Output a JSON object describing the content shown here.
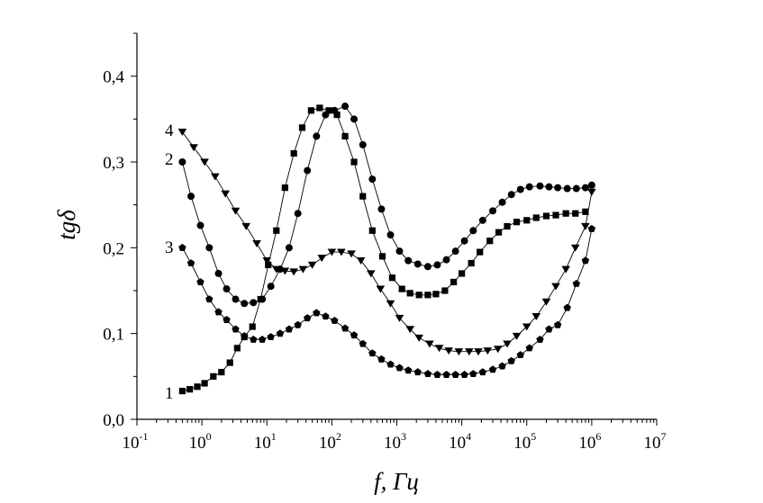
{
  "chart_data": {
    "type": "scatter",
    "x_scale": "log",
    "xlabel": "f, Гц",
    "ylabel": "tgδ",
    "xlim": [
      0.1,
      10000000
    ],
    "ylim": [
      0.0,
      0.45
    ],
    "y_ticks": [
      "0,0",
      "0,1",
      "0,2",
      "0,3",
      "0,4"
    ],
    "y_tick_values": [
      0.0,
      0.1,
      0.2,
      0.3,
      0.4
    ],
    "x_ticks": [
      {
        "base": "10",
        "exp": "-1",
        "value": 0.1
      },
      {
        "base": "10",
        "exp": "0",
        "value": 1
      },
      {
        "base": "10",
        "exp": "1",
        "value": 10
      },
      {
        "base": "10",
        "exp": "2",
        "value": 100
      },
      {
        "base": "10",
        "exp": "3",
        "value": 1000
      },
      {
        "base": "10",
        "exp": "4",
        "value": 10000
      },
      {
        "base": "10",
        "exp": "5",
        "value": 100000
      },
      {
        "base": "10",
        "exp": "6",
        "value": 1000000
      },
      {
        "base": "10",
        "exp": "7",
        "value": 10000000
      }
    ],
    "grid": false,
    "series": [
      {
        "name": "1",
        "marker": "square",
        "points": [
          [
            0.5,
            0.033
          ],
          [
            0.65,
            0.035
          ],
          [
            0.85,
            0.038
          ],
          [
            1.1,
            0.042
          ],
          [
            1.5,
            0.05
          ],
          [
            2.0,
            0.055
          ],
          [
            2.7,
            0.066
          ],
          [
            3.5,
            0.083
          ],
          [
            4.5,
            0.096
          ],
          [
            6.0,
            0.108
          ],
          [
            8.0,
            0.14
          ],
          [
            10.5,
            0.18
          ],
          [
            14.0,
            0.22
          ],
          [
            19.0,
            0.27
          ],
          [
            26.0,
            0.31
          ],
          [
            35.0,
            0.34
          ],
          [
            48.0,
            0.36
          ],
          [
            65.0,
            0.363
          ],
          [
            90.0,
            0.36
          ],
          [
            120.0,
            0.355
          ],
          [
            160.0,
            0.33
          ],
          [
            220.0,
            0.3
          ],
          [
            300.0,
            0.26
          ],
          [
            420.0,
            0.22
          ],
          [
            600.0,
            0.19
          ],
          [
            850.0,
            0.165
          ],
          [
            1200.0,
            0.152
          ],
          [
            1600.0,
            0.147
          ],
          [
            2200.0,
            0.145
          ],
          [
            3000.0,
            0.145
          ],
          [
            4000.0,
            0.146
          ],
          [
            5500.0,
            0.15
          ],
          [
            7500.0,
            0.16
          ],
          [
            10000.0,
            0.17
          ],
          [
            14000.0,
            0.182
          ],
          [
            19000.0,
            0.195
          ],
          [
            27000.0,
            0.208
          ],
          [
            37000.0,
            0.218
          ],
          [
            50000.0,
            0.225
          ],
          [
            70000.0,
            0.23
          ],
          [
            100000.0,
            0.232
          ],
          [
            140000.0,
            0.235
          ],
          [
            200000.0,
            0.237
          ],
          [
            280000.0,
            0.238
          ],
          [
            400000.0,
            0.24
          ],
          [
            560000.0,
            0.24
          ],
          [
            800000.0,
            0.242
          ]
        ]
      },
      {
        "name": "2",
        "marker": "circle",
        "points": [
          [
            0.5,
            0.3
          ],
          [
            0.68,
            0.26
          ],
          [
            0.95,
            0.226
          ],
          [
            1.3,
            0.2
          ],
          [
            1.8,
            0.17
          ],
          [
            2.4,
            0.152
          ],
          [
            3.3,
            0.14
          ],
          [
            4.5,
            0.135
          ],
          [
            6.2,
            0.136
          ],
          [
            8.5,
            0.14
          ],
          [
            11.5,
            0.155
          ],
          [
            16.0,
            0.175
          ],
          [
            22.0,
            0.2
          ],
          [
            30.0,
            0.24
          ],
          [
            42.0,
            0.29
          ],
          [
            58.0,
            0.33
          ],
          [
            80.0,
            0.355
          ],
          [
            110.0,
            0.36
          ],
          [
            160.0,
            0.365
          ],
          [
            220.0,
            0.35
          ],
          [
            300.0,
            0.32
          ],
          [
            420.0,
            0.28
          ],
          [
            580.0,
            0.245
          ],
          [
            800.0,
            0.215
          ],
          [
            1100.0,
            0.196
          ],
          [
            1500.0,
            0.185
          ],
          [
            2100.0,
            0.181
          ],
          [
            3000.0,
            0.178
          ],
          [
            4200.0,
            0.18
          ],
          [
            5800.0,
            0.186
          ],
          [
            8000.0,
            0.196
          ],
          [
            11000.0,
            0.208
          ],
          [
            15000.0,
            0.22
          ],
          [
            21000.0,
            0.232
          ],
          [
            30000.0,
            0.243
          ],
          [
            42000.0,
            0.253
          ],
          [
            58000.0,
            0.262
          ],
          [
            80000.0,
            0.268
          ],
          [
            110000.0,
            0.271
          ],
          [
            160000.0,
            0.272
          ],
          [
            220000.0,
            0.271
          ],
          [
            300000.0,
            0.27
          ],
          [
            420000.0,
            0.269
          ],
          [
            580000.0,
            0.269
          ],
          [
            800000.0,
            0.27
          ],
          [
            1000000.0,
            0.273
          ]
        ]
      },
      {
        "name": "3",
        "marker": "pentagon",
        "points": [
          [
            0.5,
            0.2
          ],
          [
            0.68,
            0.182
          ],
          [
            0.95,
            0.16
          ],
          [
            1.3,
            0.14
          ],
          [
            1.8,
            0.125
          ],
          [
            2.4,
            0.116
          ],
          [
            3.3,
            0.105
          ],
          [
            4.5,
            0.097
          ],
          [
            6.2,
            0.093
          ],
          [
            8.5,
            0.093
          ],
          [
            11.5,
            0.096
          ],
          [
            16.0,
            0.1
          ],
          [
            22.0,
            0.105
          ],
          [
            30.0,
            0.11
          ],
          [
            42.0,
            0.118
          ],
          [
            58.0,
            0.124
          ],
          [
            80.0,
            0.12
          ],
          [
            110.0,
            0.115
          ],
          [
            160.0,
            0.106
          ],
          [
            220.0,
            0.098
          ],
          [
            300.0,
            0.088
          ],
          [
            420.0,
            0.077
          ],
          [
            580.0,
            0.07
          ],
          [
            800.0,
            0.064
          ],
          [
            1100.0,
            0.06
          ],
          [
            1500.0,
            0.057
          ],
          [
            2100.0,
            0.055
          ],
          [
            3000.0,
            0.053
          ],
          [
            4200.0,
            0.052
          ],
          [
            5800.0,
            0.052
          ],
          [
            8000.0,
            0.052
          ],
          [
            11000.0,
            0.052
          ],
          [
            15000.0,
            0.053
          ],
          [
            21000.0,
            0.055
          ],
          [
            30000.0,
            0.058
          ],
          [
            42000.0,
            0.062
          ],
          [
            58000.0,
            0.068
          ],
          [
            80000.0,
            0.075
          ],
          [
            110000.0,
            0.083
          ],
          [
            160000.0,
            0.093
          ],
          [
            220000.0,
            0.105
          ],
          [
            300000.0,
            0.11
          ],
          [
            420000.0,
            0.13
          ],
          [
            580000.0,
            0.158
          ],
          [
            800000.0,
            0.185
          ],
          [
            1000000.0,
            0.222
          ]
        ]
      },
      {
        "name": "4",
        "marker": "triangle-down",
        "points": [
          [
            0.5,
            0.335
          ],
          [
            0.75,
            0.317
          ],
          [
            1.1,
            0.3
          ],
          [
            1.6,
            0.283
          ],
          [
            2.3,
            0.263
          ],
          [
            3.3,
            0.243
          ],
          [
            4.8,
            0.225
          ],
          [
            7.0,
            0.205
          ],
          [
            10.0,
            0.185
          ],
          [
            14.0,
            0.175
          ],
          [
            19.0,
            0.173
          ],
          [
            26.0,
            0.172
          ],
          [
            36.0,
            0.175
          ],
          [
            50.0,
            0.18
          ],
          [
            70.0,
            0.188
          ],
          [
            100.0,
            0.195
          ],
          [
            140.0,
            0.195
          ],
          [
            200.0,
            0.193
          ],
          [
            280.0,
            0.185
          ],
          [
            400.0,
            0.17
          ],
          [
            560.0,
            0.152
          ],
          [
            800.0,
            0.135
          ],
          [
            1100.0,
            0.118
          ],
          [
            1600.0,
            0.105
          ],
          [
            2200.0,
            0.095
          ],
          [
            3200.0,
            0.088
          ],
          [
            4500.0,
            0.083
          ],
          [
            6300.0,
            0.08
          ],
          [
            9000.0,
            0.079
          ],
          [
            13000.0,
            0.079
          ],
          [
            18000.0,
            0.079
          ],
          [
            25000.0,
            0.08
          ],
          [
            36000.0,
            0.082
          ],
          [
            50000.0,
            0.088
          ],
          [
            70000.0,
            0.097
          ],
          [
            100000.0,
            0.108
          ],
          [
            140000.0,
            0.12
          ],
          [
            200000.0,
            0.137
          ],
          [
            280000.0,
            0.155
          ],
          [
            400000.0,
            0.175
          ],
          [
            560000.0,
            0.2
          ],
          [
            800000.0,
            0.225
          ],
          [
            1000000.0,
            0.265
          ]
        ]
      }
    ],
    "curve_labels": [
      "4",
      "2",
      "3",
      "1"
    ]
  }
}
